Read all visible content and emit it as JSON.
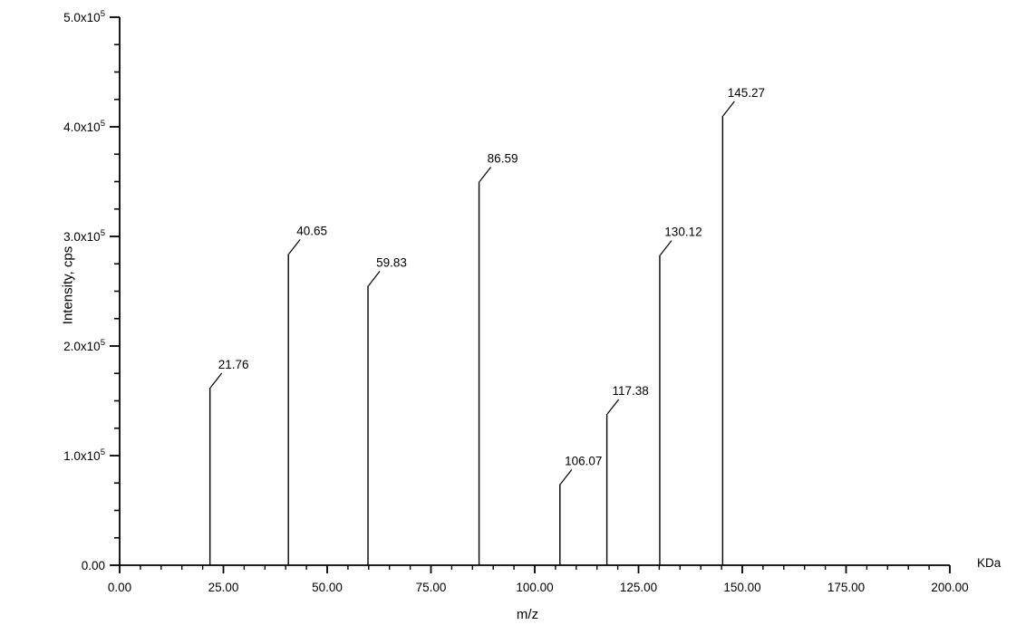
{
  "page": {
    "background_color": "#ffffff",
    "line_color": "#000000",
    "text_color": "#000000"
  },
  "chart_data": {
    "type": "bar",
    "subtype": "mass-spectrum-stick-plot",
    "title": "",
    "xlabel": "m/z",
    "ylabel": "Intensity, cps",
    "x_unit_label": "KDa",
    "xlim": [
      0,
      200
    ],
    "ylim": [
      0,
      500000
    ],
    "grid": false,
    "legend": false,
    "x_major_ticks": [
      {
        "value": 0,
        "text": "0.00"
      },
      {
        "value": 25,
        "text": "25.00"
      },
      {
        "value": 50,
        "text": "50.00"
      },
      {
        "value": 75,
        "text": "75.00"
      },
      {
        "value": 100,
        "text": "100.00"
      },
      {
        "value": 125,
        "text": "125.00"
      },
      {
        "value": 150,
        "text": "150.00"
      },
      {
        "value": 175,
        "text": "175.00"
      },
      {
        "value": 200,
        "text": "200.00"
      }
    ],
    "x_minor_step": 5,
    "y_major_ticks": [
      {
        "value": 0,
        "text": "0.00",
        "exp": ""
      },
      {
        "value": 100000,
        "text": "1.0x10",
        "exp": "5"
      },
      {
        "value": 200000,
        "text": "2.0x10",
        "exp": "5"
      },
      {
        "value": 300000,
        "text": "3.0x10",
        "exp": "5"
      },
      {
        "value": 400000,
        "text": "4.0x10",
        "exp": "5"
      },
      {
        "value": 500000,
        "text": "5.0x10",
        "exp": "5"
      }
    ],
    "y_minor_step": 25000,
    "peaks": [
      {
        "mz": 21.76,
        "intensity": 162000,
        "label": "21.76"
      },
      {
        "mz": 40.65,
        "intensity": 284000,
        "label": "40.65"
      },
      {
        "mz": 59.83,
        "intensity": 255000,
        "label": "59.83"
      },
      {
        "mz": 86.59,
        "intensity": 350000,
        "label": "86.59"
      },
      {
        "mz": 106.07,
        "intensity": 74000,
        "label": "106.07"
      },
      {
        "mz": 117.38,
        "intensity": 138000,
        "label": "117.38"
      },
      {
        "mz": 130.12,
        "intensity": 283000,
        "label": "130.12"
      },
      {
        "mz": 145.27,
        "intensity": 410000,
        "label": "145.27"
      }
    ]
  }
}
